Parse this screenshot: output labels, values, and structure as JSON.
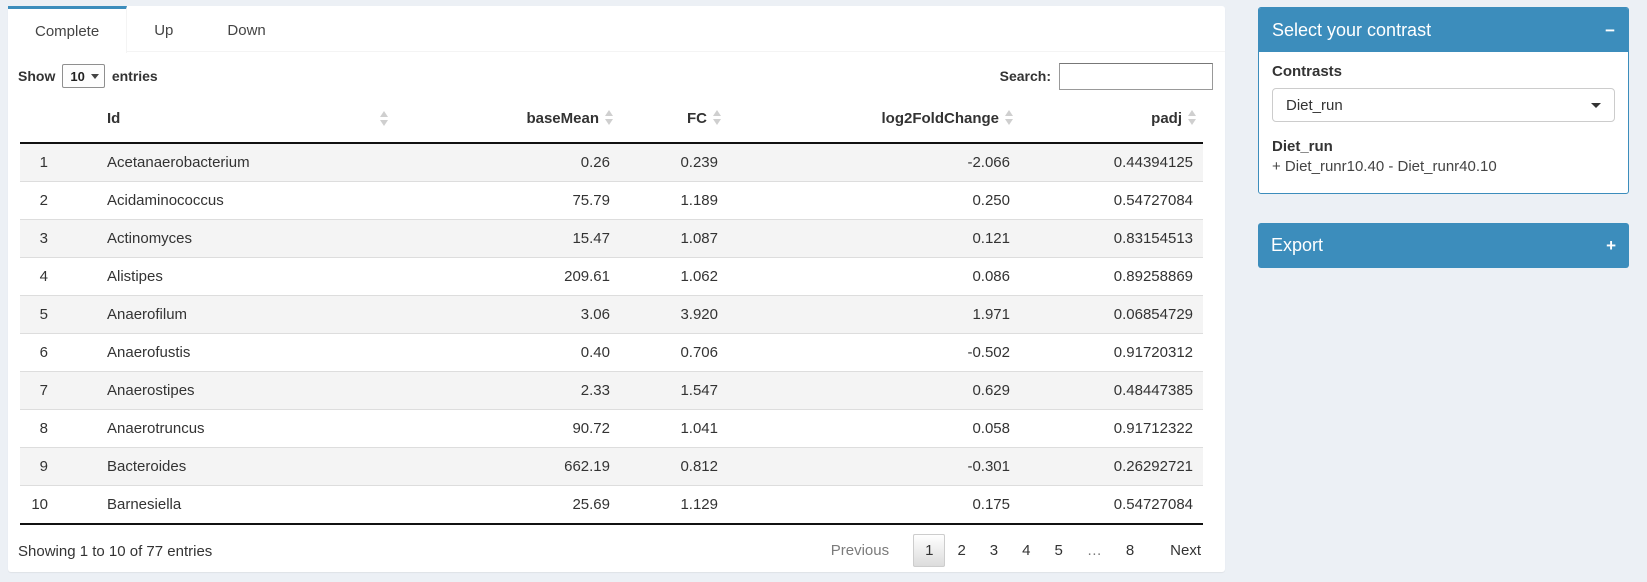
{
  "tabs": [
    {
      "label": "Complete",
      "active": true
    },
    {
      "label": "Up",
      "active": false
    },
    {
      "label": "Down",
      "active": false
    }
  ],
  "controls": {
    "show_label": "Show",
    "page_size": "10",
    "entries_label": "entries",
    "search_label": "Search:",
    "search_value": ""
  },
  "table": {
    "columns": [
      {
        "label": "",
        "sortable": false
      },
      {
        "label": "Id",
        "sortable": true
      },
      {
        "label": "baseMean",
        "sortable": true
      },
      {
        "label": "FC",
        "sortable": true
      },
      {
        "label": "log2FoldChange",
        "sortable": true
      },
      {
        "label": "padj",
        "sortable": true
      }
    ],
    "rows": [
      {
        "num": "1",
        "id": "Acetanaerobacterium",
        "base_mean": "0.26",
        "fc": "0.239",
        "log2_fold_change": "-2.066",
        "padj": "0.44394125"
      },
      {
        "num": "2",
        "id": "Acidaminococcus",
        "base_mean": "75.79",
        "fc": "1.189",
        "log2_fold_change": "0.250",
        "padj": "0.54727084"
      },
      {
        "num": "3",
        "id": "Actinomyces",
        "base_mean": "15.47",
        "fc": "1.087",
        "log2_fold_change": "0.121",
        "padj": "0.83154513"
      },
      {
        "num": "4",
        "id": "Alistipes",
        "base_mean": "209.61",
        "fc": "1.062",
        "log2_fold_change": "0.086",
        "padj": "0.89258869"
      },
      {
        "num": "5",
        "id": "Anaerofilum",
        "base_mean": "3.06",
        "fc": "3.920",
        "log2_fold_change": "1.971",
        "padj": "0.06854729"
      },
      {
        "num": "6",
        "id": "Anaerofustis",
        "base_mean": "0.40",
        "fc": "0.706",
        "log2_fold_change": "-0.502",
        "padj": "0.91720312"
      },
      {
        "num": "7",
        "id": "Anaerostipes",
        "base_mean": "2.33",
        "fc": "1.547",
        "log2_fold_change": "0.629",
        "padj": "0.48447385"
      },
      {
        "num": "8",
        "id": "Anaerotruncus",
        "base_mean": "90.72",
        "fc": "1.041",
        "log2_fold_change": "0.058",
        "padj": "0.91712322"
      },
      {
        "num": "9",
        "id": "Bacteroides",
        "base_mean": "662.19",
        "fc": "0.812",
        "log2_fold_change": "-0.301",
        "padj": "0.26292721"
      },
      {
        "num": "10",
        "id": "Barnesiella",
        "base_mean": "25.69",
        "fc": "1.129",
        "log2_fold_change": "0.175",
        "padj": "0.54727084"
      }
    ],
    "info": "Showing 1 to 10 of 77 entries",
    "pagination": {
      "previous_label": "Previous",
      "pages": [
        "1",
        "2",
        "3",
        "4",
        "5",
        "…",
        "8"
      ],
      "current_page": "1",
      "next_label": "Next"
    }
  },
  "contrast_panel": {
    "title": "Select your contrast",
    "collapse_icon": "−",
    "contrasts_label": "Contrasts",
    "selected_contrast": "Diet_run",
    "contrast_name": "Diet_run",
    "contrast_definition": "+ Diet_runr10.40 - Diet_runr40.10"
  },
  "export_panel": {
    "title": "Export",
    "expand_icon": "+"
  },
  "colors": {
    "primary": "#3c8dbc",
    "page_background": "#ecf0f5"
  }
}
